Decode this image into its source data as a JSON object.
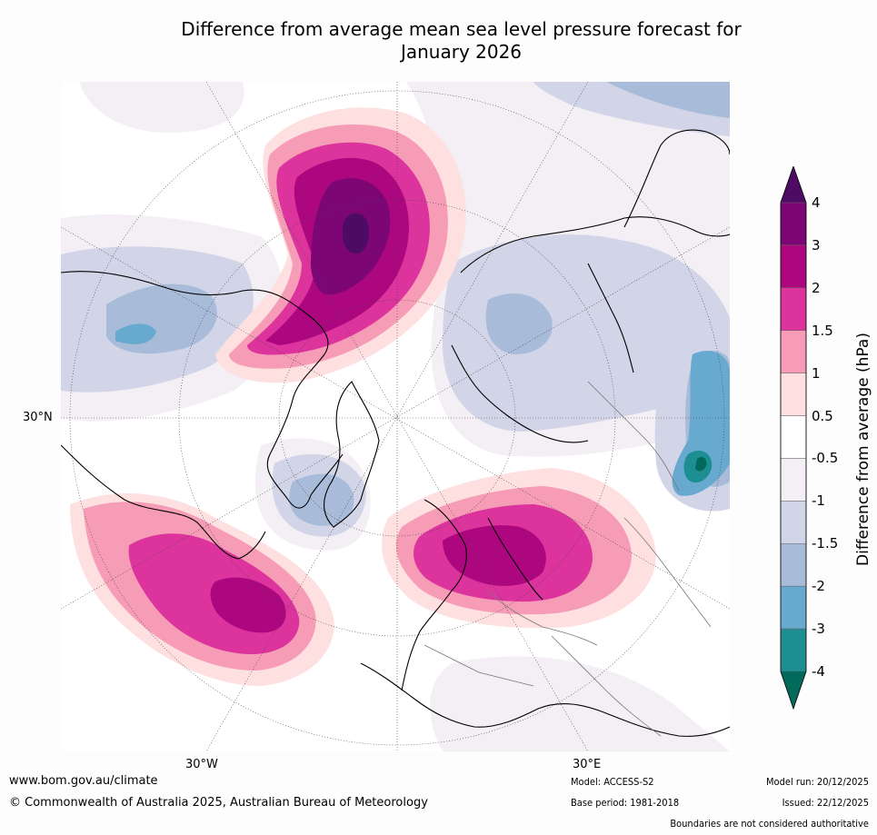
{
  "title": {
    "line1": "Difference from average mean sea level pressure forecast for",
    "line2": "January 2026"
  },
  "map": {
    "lat_labels": [
      "30°N"
    ],
    "lon_labels": [
      "30°W",
      "30°E"
    ]
  },
  "colorbar": {
    "label": "Difference from average (hPa)",
    "ticks": [
      "4",
      "3",
      "2",
      "1.5",
      "1",
      "0.5",
      "-0.5",
      "-1",
      "-1.5",
      "-2",
      "-3",
      "-4"
    ],
    "colors": [
      "#4d0b63",
      "#7c0674",
      "#ad0780",
      "#dc349c",
      "#f69cb7",
      "#fde0df",
      "#ffffff",
      "#f3eff5",
      "#d2d4e7",
      "#a8bcd9",
      "#68a9cf",
      "#1d8e92",
      "#026a5a"
    ]
  },
  "footer": {
    "website": "www.bom.gov.au/climate",
    "copyright": "© Commonwealth of Australia 2025, Australian Bureau of Meteorology",
    "model": "Model: ACCESS-S2",
    "base_period": "Base period: 1981-2018",
    "model_run": "Model run: 20/12/2025",
    "issued": "Issued: 22/12/2025",
    "disclaimer": "Boundaries are not considered authoritative"
  }
}
